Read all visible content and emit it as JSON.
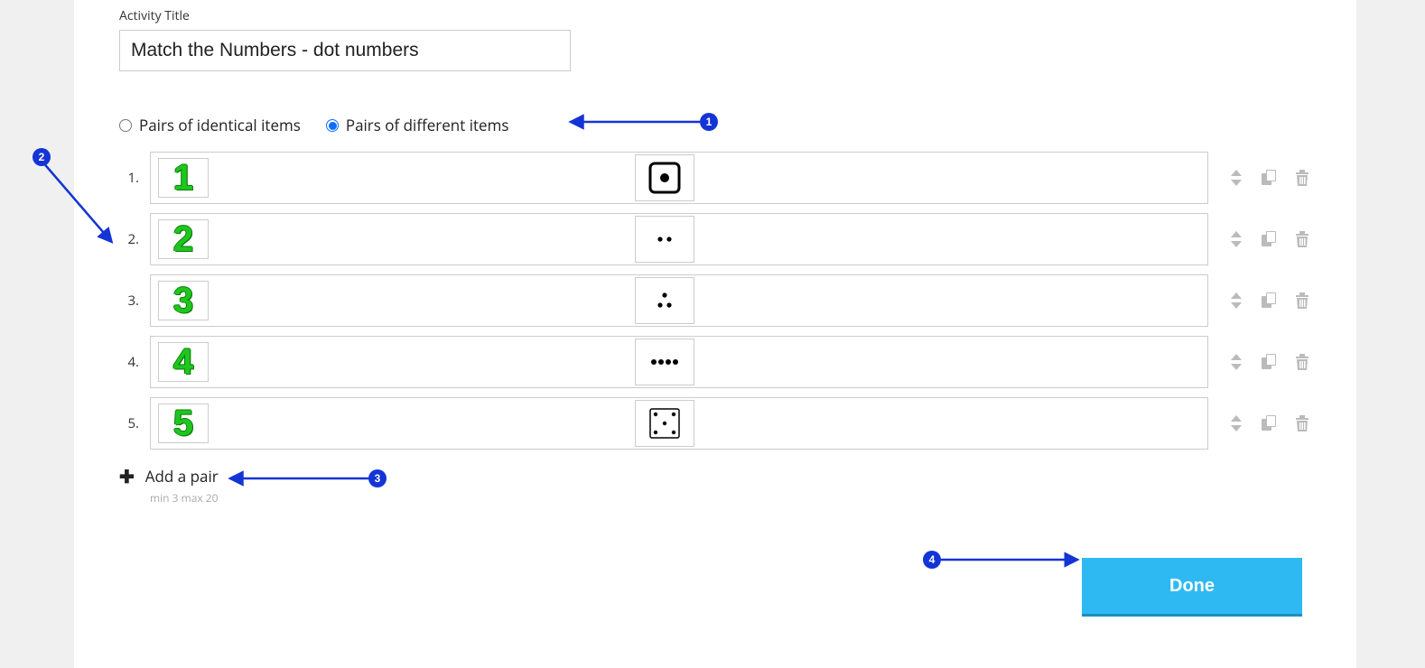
{
  "labels": {
    "activity_title": "Activity Title",
    "radio_identical": "Pairs of identical items",
    "radio_different": "Pairs of different items",
    "add_pair": "Add a pair",
    "hint": "min 3   max 20",
    "done": "Done"
  },
  "title_value": "Match the Numbers - dot numbers",
  "radio_selected": "different",
  "rows": [
    {
      "index": "1.",
      "left_digit": "1",
      "right_kind": "die1"
    },
    {
      "index": "2.",
      "left_digit": "2",
      "right_kind": "dots2"
    },
    {
      "index": "3.",
      "left_digit": "3",
      "right_kind": "dots3"
    },
    {
      "index": "4.",
      "left_digit": "4",
      "right_kind": "dots4"
    },
    {
      "index": "5.",
      "left_digit": "5",
      "right_kind": "die5"
    }
  ],
  "annotations": {
    "color": "#1434d6",
    "badges": [
      "1",
      "2",
      "3",
      "4"
    ]
  },
  "colors": {
    "page_bg": "#f0f0f0",
    "card_bg": "#ffffff",
    "border": "#cccccc",
    "text": "#222222",
    "muted": "#aaaaaa",
    "icon": "#bbbbbb",
    "radio_checked": "#0d6efd",
    "number_fill": "#1ec61e",
    "number_stroke": "#0a7a0a",
    "done_bg": "#2fb9f2",
    "done_shadow": "#1d8fbe",
    "annotation": "#1434d6"
  }
}
